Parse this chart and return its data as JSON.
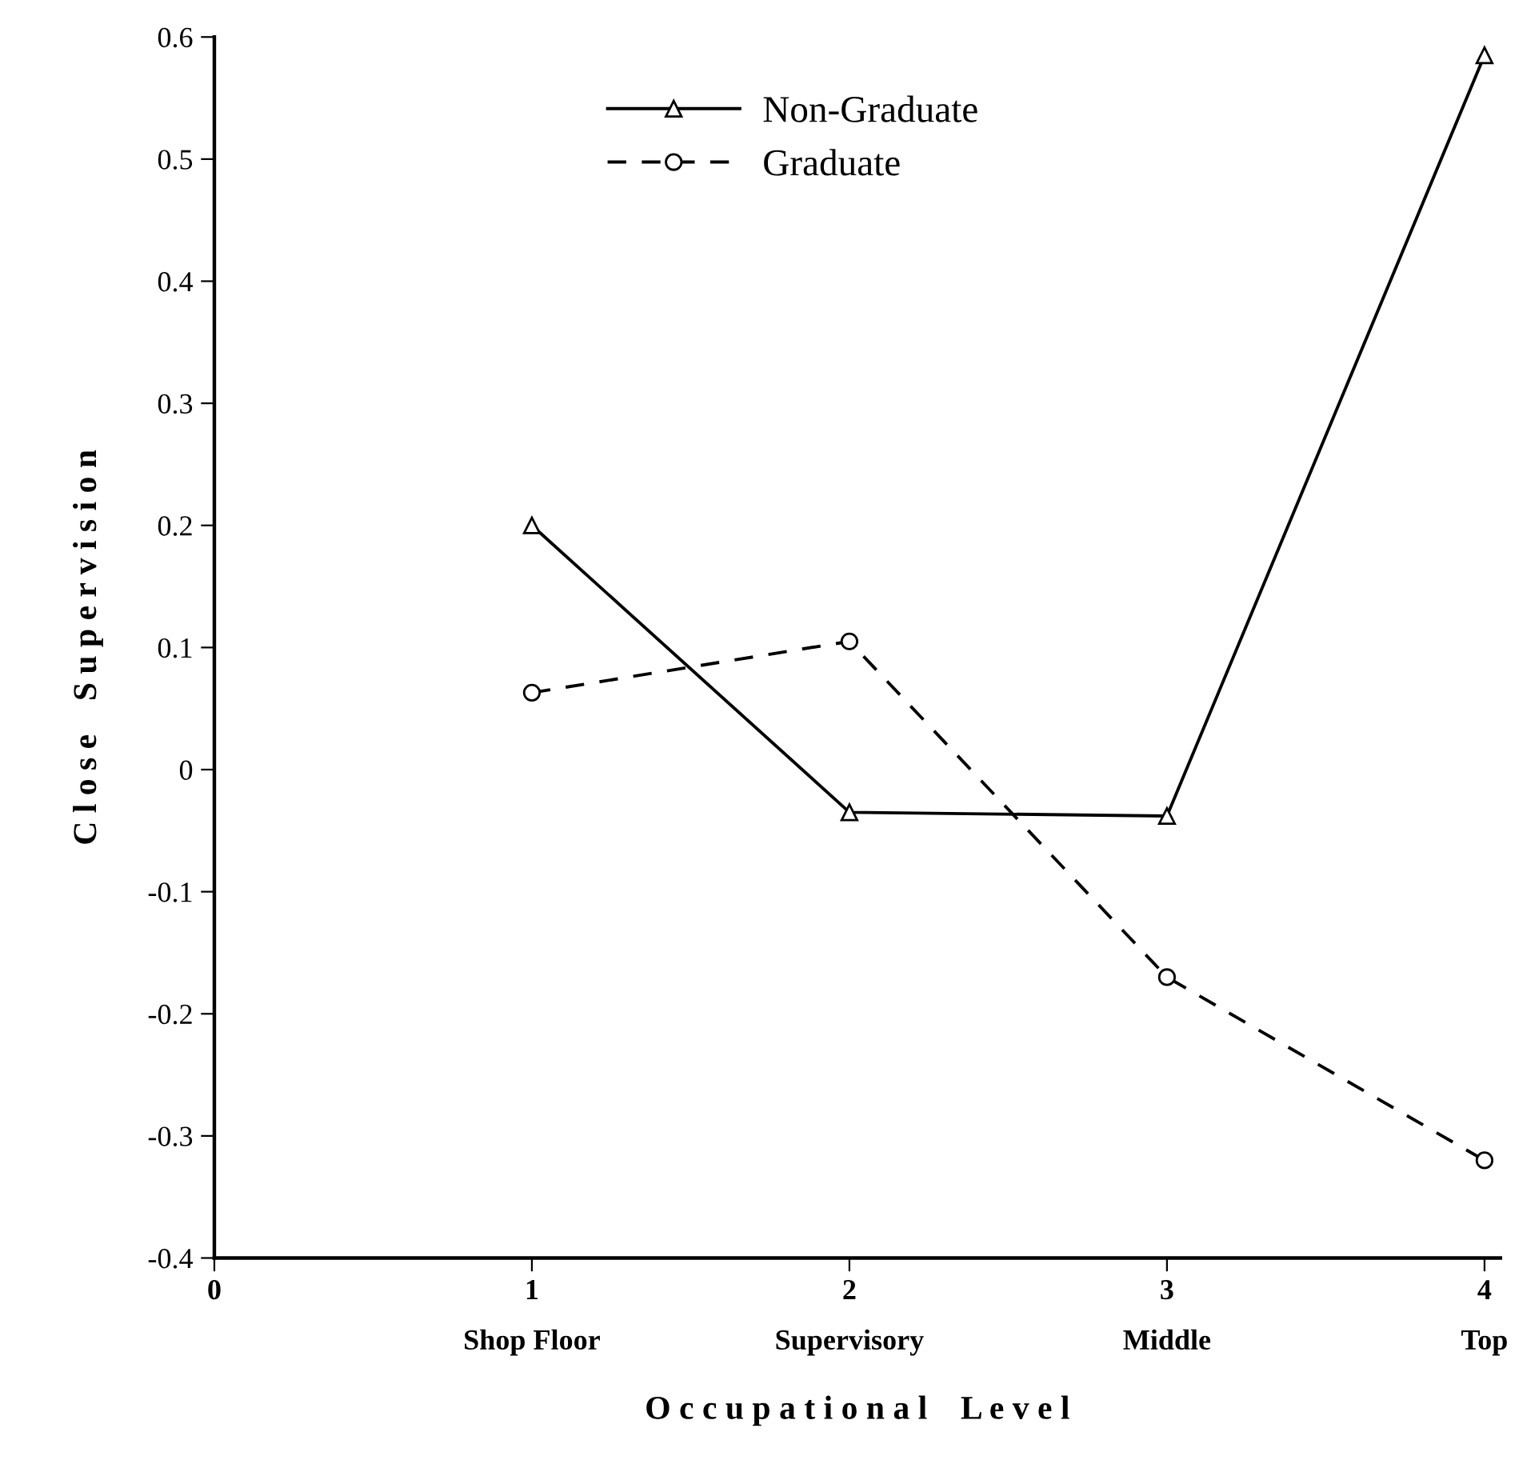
{
  "chart_data": {
    "type": "line",
    "xlabel": "O c c u p a t i o n a l    L e v e l",
    "ylabel": "C l o s e    S u p e r v i s i o n",
    "x": [
      1,
      2,
      3,
      4
    ],
    "xlim": [
      0,
      4.05
    ],
    "xticks": [
      0,
      {
        "value": 1,
        "label": "1\nShop Floor"
      },
      {
        "value": 2,
        "label": "2\nSupervisory"
      },
      {
        "value": 3,
        "label": "3\nMiddle"
      },
      {
        "value": 4,
        "label": "4\nTop"
      }
    ],
    "ylim": [
      -0.4,
      0.6
    ],
    "yticks": [
      -0.4,
      -0.3,
      -0.2,
      -0.1,
      0,
      0.1,
      0.2,
      0.3,
      0.4,
      0.5,
      0.6
    ],
    "series": [
      {
        "name": "Non-Graduate",
        "color": "#000000",
        "marker": "triangle",
        "line_style": "solid",
        "values": [
          0.2,
          -0.035,
          -0.038,
          0.585
        ]
      },
      {
        "name": "Graduate",
        "color": "#000000",
        "marker": "circle",
        "line_style": "dashed",
        "values": [
          0.063,
          0.105,
          -0.17,
          -0.32
        ]
      }
    ],
    "legend": "top",
    "grid": false
  }
}
